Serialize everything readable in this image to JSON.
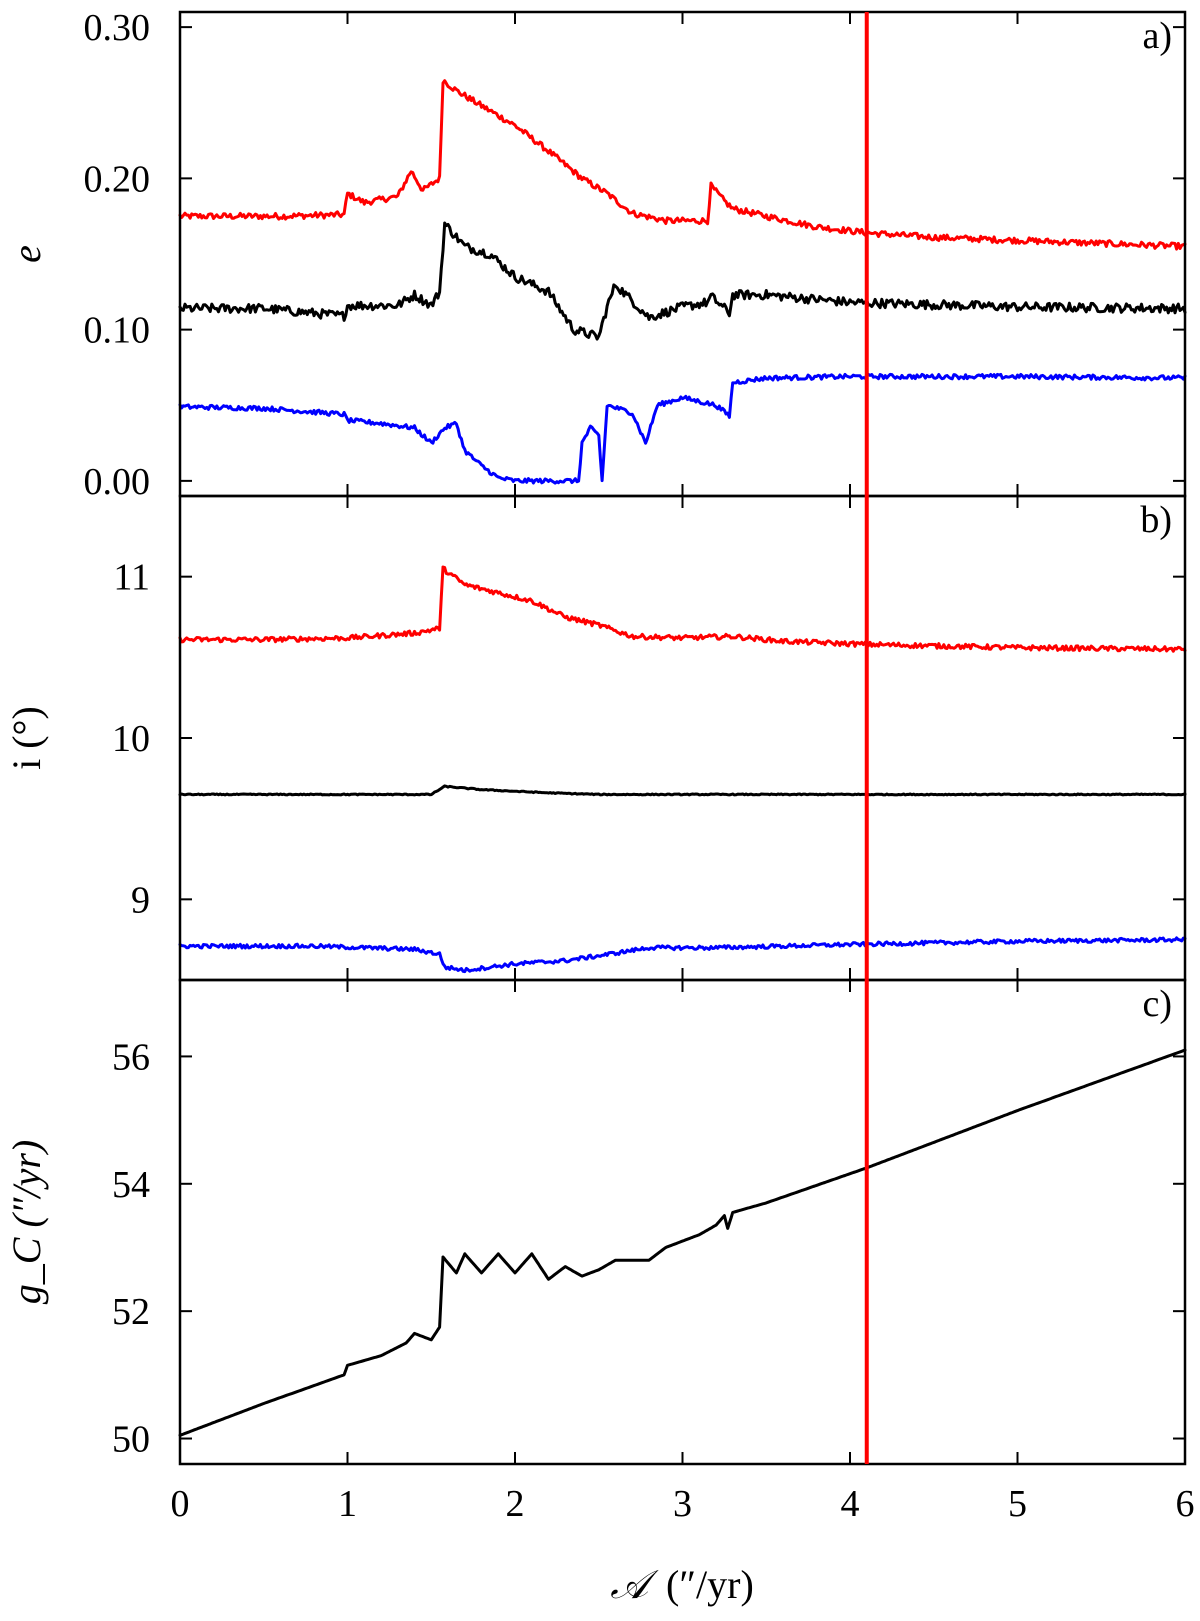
{
  "chart_data": {
    "type": "line",
    "x_axis": {
      "label_script": "𝒜",
      "label_units": "(″/yr)",
      "range": [
        0,
        6
      ],
      "ticks": [
        "0",
        "1",
        "2",
        "3",
        "4",
        "5",
        "6"
      ]
    },
    "reference_line": {
      "x": 4.1,
      "color": "#ff0000"
    },
    "colors": {
      "upper": "#ff0000",
      "mean": "#000000",
      "lower": "#0000ff"
    },
    "panels": [
      {
        "tag": "a)",
        "ylabel": "e",
        "ylim": [
          -0.01,
          0.31
        ],
        "yticks": [
          {
            "value": 0.0,
            "label": "0.00"
          },
          {
            "value": 0.1,
            "label": "0.10"
          },
          {
            "value": 0.2,
            "label": "0.20"
          },
          {
            "value": 0.3,
            "label": "0.30"
          }
        ],
        "series": [
          {
            "color": "#ff0000",
            "noise": 0.002,
            "points": [
              [
                0,
                0.175
              ],
              [
                0.6,
                0.175
              ],
              [
                0.98,
                0.176
              ],
              [
                1.0,
                0.19
              ],
              [
                1.1,
                0.184
              ],
              [
                1.3,
                0.188
              ],
              [
                1.38,
                0.205
              ],
              [
                1.45,
                0.192
              ],
              [
                1.55,
                0.2
              ],
              [
                1.57,
                0.265
              ],
              [
                1.65,
                0.258
              ],
              [
                1.8,
                0.248
              ],
              [
                2.0,
                0.235
              ],
              [
                2.2,
                0.218
              ],
              [
                2.4,
                0.2
              ],
              [
                2.55,
                0.19
              ],
              [
                2.7,
                0.177
              ],
              [
                2.9,
                0.172
              ],
              [
                3.15,
                0.172
              ],
              [
                3.17,
                0.195
              ],
              [
                3.25,
                0.185
              ],
              [
                3.3,
                0.18
              ],
              [
                3.5,
                0.175
              ],
              [
                3.8,
                0.168
              ],
              [
                4.1,
                0.164
              ],
              [
                4.5,
                0.161
              ],
              [
                5.0,
                0.159
              ],
              [
                5.5,
                0.157
              ],
              [
                6.0,
                0.155
              ]
            ]
          },
          {
            "color": "#000000",
            "noise": 0.003,
            "points": [
              [
                0,
                0.114
              ],
              [
                0.5,
                0.114
              ],
              [
                0.98,
                0.109
              ],
              [
                1.0,
                0.116
              ],
              [
                1.3,
                0.116
              ],
              [
                1.4,
                0.123
              ],
              [
                1.5,
                0.116
              ],
              [
                1.55,
                0.125
              ],
              [
                1.58,
                0.17
              ],
              [
                1.7,
                0.155
              ],
              [
                1.85,
                0.15
              ],
              [
                2.0,
                0.135
              ],
              [
                2.2,
                0.125
              ],
              [
                2.35,
                0.1
              ],
              [
                2.5,
                0.095
              ],
              [
                2.55,
                0.115
              ],
              [
                2.6,
                0.13
              ],
              [
                2.8,
                0.108
              ],
              [
                3.0,
                0.115
              ],
              [
                3.15,
                0.118
              ],
              [
                3.17,
                0.122
              ],
              [
                3.28,
                0.111
              ],
              [
                3.3,
                0.123
              ],
              [
                3.5,
                0.123
              ],
              [
                4.0,
                0.118
              ],
              [
                5.0,
                0.115
              ],
              [
                6.0,
                0.114
              ]
            ]
          },
          {
            "color": "#0000ff",
            "noise": 0.0015,
            "points": [
              [
                0,
                0.049
              ],
              [
                0.5,
                0.048
              ],
              [
                0.98,
                0.044
              ],
              [
                1.0,
                0.04
              ],
              [
                1.2,
                0.038
              ],
              [
                1.4,
                0.035
              ],
              [
                1.5,
                0.025
              ],
              [
                1.58,
                0.035
              ],
              [
                1.65,
                0.038
              ],
              [
                1.7,
                0.02
              ],
              [
                1.8,
                0.01
              ],
              [
                1.9,
                0.002
              ],
              [
                2.0,
                0.0
              ],
              [
                2.2,
                0.0
              ],
              [
                2.38,
                0.0
              ],
              [
                2.4,
                0.025
              ],
              [
                2.45,
                0.035
              ],
              [
                2.5,
                0.03
              ],
              [
                2.52,
                0.0
              ],
              [
                2.55,
                0.05
              ],
              [
                2.7,
                0.045
              ],
              [
                2.78,
                0.025
              ],
              [
                2.85,
                0.05
              ],
              [
                3.0,
                0.055
              ],
              [
                3.2,
                0.05
              ],
              [
                3.28,
                0.043
              ],
              [
                3.3,
                0.065
              ],
              [
                3.5,
                0.068
              ],
              [
                4.0,
                0.069
              ],
              [
                5.0,
                0.069
              ],
              [
                6.0,
                0.068
              ]
            ]
          }
        ]
      },
      {
        "tag": "b)",
        "ylabel": "i (°)",
        "ylim": [
          8.5,
          11.5
        ],
        "yticks": [
          {
            "value": 9,
            "label": "9"
          },
          {
            "value": 10,
            "label": "10"
          },
          {
            "value": 11,
            "label": "11"
          }
        ],
        "series": [
          {
            "color": "#ff0000",
            "noise": 0.015,
            "points": [
              [
                0,
                10.61
              ],
              [
                0.5,
                10.61
              ],
              [
                1.0,
                10.62
              ],
              [
                1.4,
                10.65
              ],
              [
                1.55,
                10.68
              ],
              [
                1.57,
                11.05
              ],
              [
                1.7,
                10.95
              ],
              [
                1.9,
                10.9
              ],
              [
                2.1,
                10.85
              ],
              [
                2.3,
                10.75
              ],
              [
                2.5,
                10.7
              ],
              [
                2.7,
                10.63
              ],
              [
                3.0,
                10.62
              ],
              [
                3.3,
                10.63
              ],
              [
                3.6,
                10.6
              ],
              [
                4.1,
                10.58
              ],
              [
                5.0,
                10.56
              ],
              [
                6.0,
                10.55
              ]
            ]
          },
          {
            "color": "#000000",
            "noise": 0.003,
            "points": [
              [
                0,
                9.65
              ],
              [
                1.5,
                9.65
              ],
              [
                1.58,
                9.7
              ],
              [
                1.8,
                9.68
              ],
              [
                2.2,
                9.66
              ],
              [
                2.5,
                9.65
              ],
              [
                3.0,
                9.65
              ],
              [
                6.0,
                9.65
              ]
            ]
          },
          {
            "color": "#0000ff",
            "noise": 0.012,
            "points": [
              [
                0,
                8.71
              ],
              [
                0.8,
                8.71
              ],
              [
                1.4,
                8.69
              ],
              [
                1.55,
                8.66
              ],
              [
                1.58,
                8.58
              ],
              [
                1.7,
                8.56
              ],
              [
                2.0,
                8.6
              ],
              [
                2.3,
                8.62
              ],
              [
                2.5,
                8.65
              ],
              [
                2.8,
                8.7
              ],
              [
                3.2,
                8.7
              ],
              [
                4.0,
                8.72
              ],
              [
                5.0,
                8.74
              ],
              [
                6.0,
                8.75
              ]
            ]
          }
        ]
      },
      {
        "tag": "c)",
        "ylabel": "g_C (″/yr)",
        "ylim": [
          49.6,
          57.2
        ],
        "yticks": [
          {
            "value": 50,
            "label": "50"
          },
          {
            "value": 52,
            "label": "52"
          },
          {
            "value": 54,
            "label": "54"
          },
          {
            "value": 56,
            "label": "56"
          }
        ],
        "series": [
          {
            "color": "#000000",
            "noise": 0.0,
            "points": [
              [
                0,
                50.05
              ],
              [
                0.5,
                50.55
              ],
              [
                0.98,
                51.0
              ],
              [
                1.0,
                51.15
              ],
              [
                1.2,
                51.3
              ],
              [
                1.35,
                51.5
              ],
              [
                1.4,
                51.65
              ],
              [
                1.5,
                51.55
              ],
              [
                1.55,
                51.75
              ],
              [
                1.57,
                52.85
              ],
              [
                1.65,
                52.6
              ],
              [
                1.7,
                52.9
              ],
              [
                1.8,
                52.6
              ],
              [
                1.9,
                52.9
              ],
              [
                2.0,
                52.6
              ],
              [
                2.1,
                52.9
              ],
              [
                2.2,
                52.5
              ],
              [
                2.3,
                52.7
              ],
              [
                2.4,
                52.55
              ],
              [
                2.5,
                52.65
              ],
              [
                2.6,
                52.8
              ],
              [
                2.8,
                52.8
              ],
              [
                2.9,
                53.0
              ],
              [
                3.1,
                53.2
              ],
              [
                3.2,
                53.35
              ],
              [
                3.25,
                53.5
              ],
              [
                3.27,
                53.3
              ],
              [
                3.3,
                53.55
              ],
              [
                3.5,
                53.7
              ],
              [
                4.1,
                54.25
              ],
              [
                5.0,
                55.15
              ],
              [
                6.0,
                56.1
              ]
            ]
          }
        ]
      }
    ]
  }
}
